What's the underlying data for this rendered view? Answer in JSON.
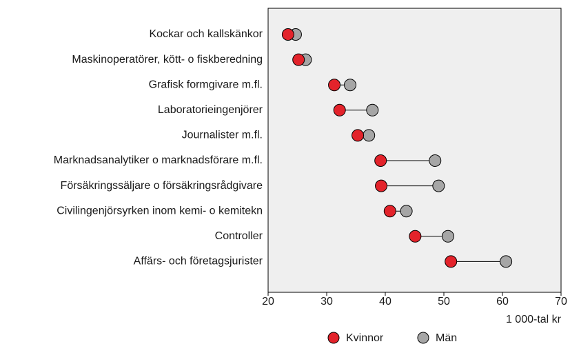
{
  "chart_data": {
    "type": "dumbbell",
    "categories": [
      "Kockar och kallskänkor",
      "Maskinoperatörer, kött- o fiskberedning",
      "Grafisk formgivare m.fl.",
      "Laboratorieingenjörer",
      "Journalister m.fl.",
      "Marknadsanalytiker o marknadsförare m.fl.",
      "Försäkringssäljare o försäkringsrådgivare",
      "Civilingenjörsyrken inom kemi- o kemitekn",
      "Controller",
      "Affärs- och företagsjurister"
    ],
    "series": [
      {
        "name": "Kvinnor",
        "color": "#e3232b",
        "values": [
          23.4,
          25.2,
          31.3,
          32.2,
          35.3,
          39.2,
          39.3,
          40.8,
          45.1,
          51.2
        ]
      },
      {
        "name": "Män",
        "color": "#a6a6a6",
        "values": [
          24.7,
          26.4,
          34.0,
          37.8,
          37.2,
          48.5,
          49.1,
          43.6,
          50.7,
          60.6
        ]
      }
    ],
    "xlabel": "1 000-tal kr",
    "xlim": [
      20,
      70
    ],
    "xticks": [
      20,
      30,
      40,
      50,
      60,
      70
    ],
    "legend": "bottom"
  }
}
